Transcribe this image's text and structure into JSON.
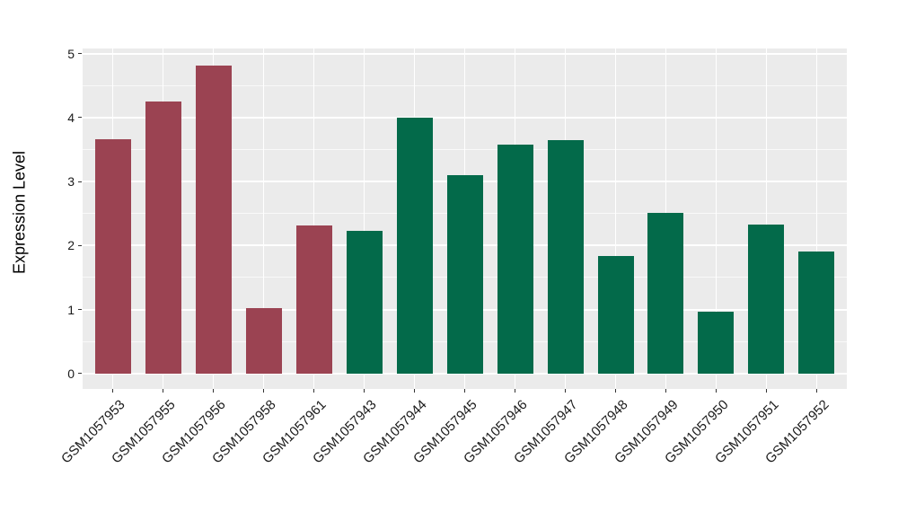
{
  "figure": {
    "background": "#FFFFFF",
    "panel_background": "#EBEBEB",
    "grid_color": "#FFFFFF",
    "axis_text_color": "#1A1A1A",
    "tick_mark_color": "#333333"
  },
  "chart_data": {
    "type": "bar",
    "title": "",
    "xlabel": "",
    "ylabel": "Expression Level",
    "ylim": [
      0,
      5
    ],
    "yticks": [
      0,
      1,
      2,
      3,
      4,
      5
    ],
    "grid": {
      "horizontal_major": true,
      "horizontal_minor": true,
      "vertical_major": true,
      "style": "white gridlines on light gray panel"
    },
    "legend": "none",
    "x_label_rotation_deg": 45,
    "categories": [
      "GSM1057953",
      "GSM1057955",
      "GSM1057956",
      "GSM1057958",
      "GSM1057961",
      "GSM1057943",
      "GSM1057944",
      "GSM1057945",
      "GSM1057946",
      "GSM1057947",
      "GSM1057948",
      "GSM1057949",
      "GSM1057950",
      "GSM1057951",
      "GSM1057952"
    ],
    "values": [
      3.66,
      4.25,
      4.81,
      1.02,
      2.31,
      2.23,
      4.0,
      3.1,
      3.58,
      3.64,
      1.84,
      2.51,
      0.97,
      2.33,
      1.9
    ],
    "bar_colors": [
      "#9B4352",
      "#9B4352",
      "#9B4352",
      "#9B4352",
      "#9B4352",
      "#036A4A",
      "#036A4A",
      "#036A4A",
      "#036A4A",
      "#036A4A",
      "#036A4A",
      "#036A4A",
      "#036A4A",
      "#036A4A",
      "#036A4A"
    ],
    "color_groups": {
      "maroon": "#9B4352",
      "green": "#036A4A"
    }
  }
}
